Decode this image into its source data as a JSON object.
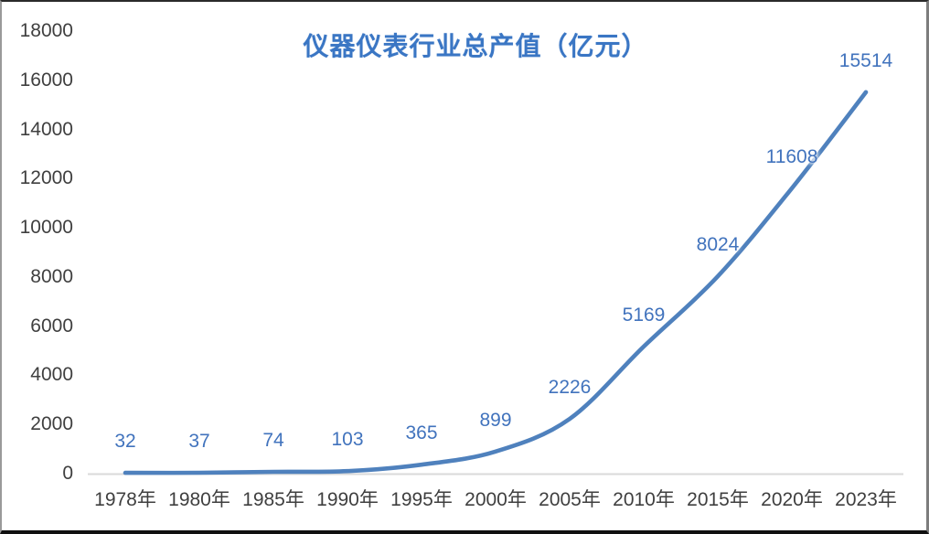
{
  "chart_data": {
    "type": "line",
    "title": "仪器仪表行业总产值（亿元）",
    "categories": [
      "1978年",
      "1980年",
      "1985年",
      "1990年",
      "1995年",
      "2000年",
      "2005年",
      "2010年",
      "2015年",
      "2020年",
      "2023年"
    ],
    "values": [
      32,
      37,
      74,
      103,
      365,
      899,
      2226,
      5169,
      8024,
      11608,
      15514
    ],
    "data_labels": [
      "32",
      "37",
      "74",
      "103",
      "365",
      "899",
      "2226",
      "5169",
      "8024",
      "11608",
      "15514"
    ],
    "yticks": [
      0,
      2000,
      4000,
      6000,
      8000,
      10000,
      12000,
      14000,
      16000,
      18000
    ],
    "ylim": [
      0,
      18000
    ],
    "xlabel": "",
    "ylabel": "",
    "grid": false,
    "legend": "none",
    "smooth": true
  },
  "colors": {
    "line": "#4f81bd",
    "data_label": "#4173bd",
    "title": "#3a76c4",
    "axis_text": "#3f3f3f",
    "axis_line": "#d9d9d9",
    "background": "#ffffff"
  }
}
